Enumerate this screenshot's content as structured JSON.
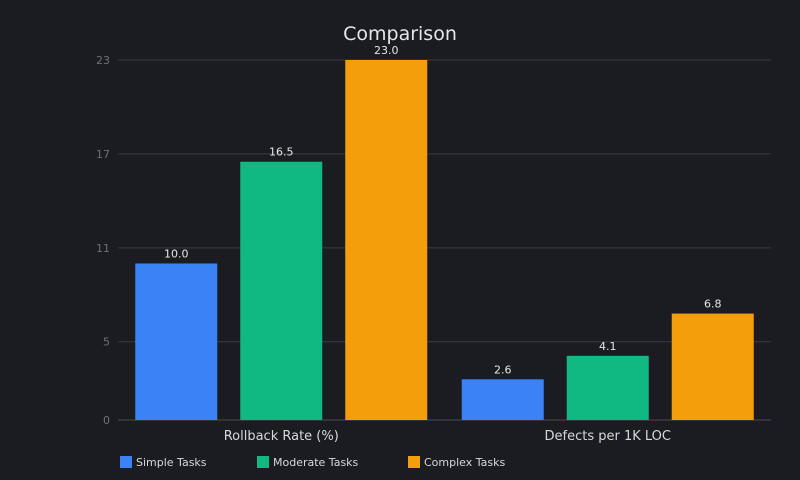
{
  "chart_data": {
    "type": "bar",
    "title": "Comparison",
    "xlabel": "",
    "ylabel": "",
    "categories": [
      "Rollback Rate (%)",
      "Defects per 1K LOC"
    ],
    "series": [
      {
        "name": "Simple Tasks",
        "color": "#3b82f6",
        "values": [
          10.0,
          2.6
        ]
      },
      {
        "name": "Moderate Tasks",
        "color": "#10b981",
        "values": [
          16.5,
          4.1
        ]
      },
      {
        "name": "Complex Tasks",
        "color": "#f59e0b",
        "values": [
          23.0,
          6.8
        ]
      }
    ],
    "yticks": [
      0,
      5,
      11,
      17,
      23
    ],
    "ylim": [
      0,
      23
    ],
    "grid": true,
    "legend": "bottom-left",
    "value_labels": true
  }
}
